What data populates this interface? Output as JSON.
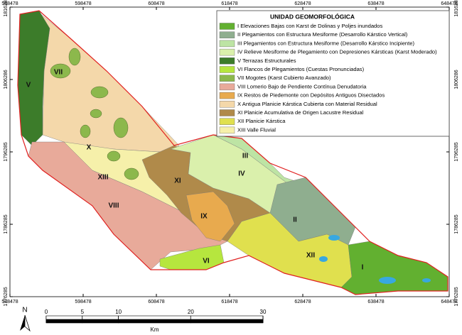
{
  "map_frame": {
    "x_ticks": [
      588478,
      598478,
      608478,
      618478,
      628478,
      638478,
      648478
    ],
    "y_ticks": [
      1816286,
      1806286,
      1796285,
      1786285,
      1776285
    ]
  },
  "legend": {
    "title": "UNIDAD GEOMORFOLÓGICA",
    "items": [
      {
        "label": "I Elevaciones Bajas con Karst de Dolinas y Poljes inundados",
        "color": "#62b030"
      },
      {
        "label": "II Plegamientos con Estructura Mesiforme (Desarrollo Kárstico Vertical)",
        "color": "#8fae8f"
      },
      {
        "label": "III Plegamientos con Estructura Mesiforme (Desarrollo Kárstico Incipiente)",
        "color": "#bde4a4"
      },
      {
        "label": "IV Relieve Mesiforme de Plegamiento con Depresiones Kársticas (Karst Moderado)",
        "color": "#daf0ac"
      },
      {
        "label": "V Terrazas Estructurales",
        "color": "#3c7c2a"
      },
      {
        "label": "VI Flancos de Plegamientos (Cuestas Pronunciadas)",
        "color": "#b6e63e"
      },
      {
        "label": "VII Mogotes (Karst Cubierto Avanzado)",
        "color": "#8cb84c"
      },
      {
        "label": "VIII Lomerio Bajo de Pendiente Contínua Denudatoria",
        "color": "#e8aa9a"
      },
      {
        "label": "IX Restos de Piedemonte con Depósitos Antiguos Disectados",
        "color": "#e8aa4e"
      },
      {
        "label": "X Antigua Planicie Kárstica Cubierta con Material Residual",
        "color": "#f4d8aa"
      },
      {
        "label": "XI Planicie Acumulativa de Origen Lacustre Residual",
        "color": "#b08a4a"
      },
      {
        "label": "XII Planicie Kárstica",
        "color": "#e0e04e"
      },
      {
        "label": "XIII Valle Fluvial",
        "color": "#f6f0aa"
      }
    ]
  },
  "regions": [
    "I",
    "II",
    "III",
    "IV",
    "V",
    "VI",
    "VII",
    "VIII",
    "IX",
    "X",
    "XI",
    "XII",
    "XIII"
  ],
  "north": "N",
  "scale": {
    "ticks": [
      0,
      5,
      10,
      20,
      30
    ],
    "unit": "Km"
  }
}
